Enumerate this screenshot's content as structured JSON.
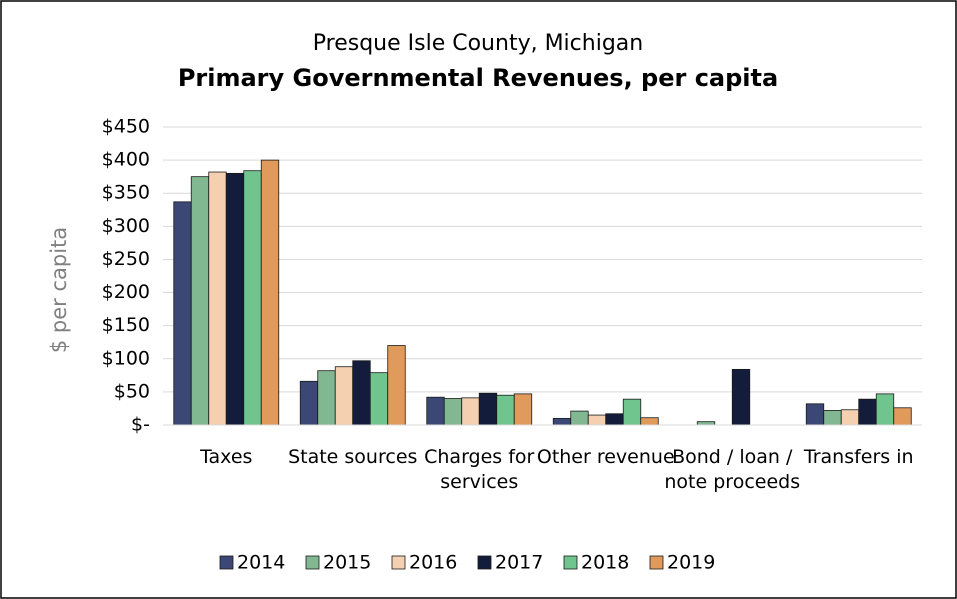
{
  "chart_data": {
    "type": "bar",
    "title": "Presque Isle County, Michigan",
    "subtitle": "Primary Governmental Revenues, per capita",
    "y_label": "$ per capita",
    "categories": [
      "Taxes",
      "State sources",
      "Charges for services",
      "Other revenue",
      "Bond / loan / note proceeds",
      "Transfers in"
    ],
    "series": [
      {
        "name": "2014",
        "color": "#3b4775",
        "values": [
          337,
          66,
          42,
          10,
          0,
          32
        ]
      },
      {
        "name": "2015",
        "color": "#82b891",
        "values": [
          375,
          82,
          40,
          21,
          5,
          22
        ]
      },
      {
        "name": "2016",
        "color": "#f4d0b0",
        "values": [
          382,
          88,
          41,
          15,
          0,
          23
        ]
      },
      {
        "name": "2017",
        "color": "#131d3b",
        "values": [
          380,
          97,
          48,
          17,
          84,
          39
        ]
      },
      {
        "name": "2018",
        "color": "#6fc58d",
        "values": [
          384,
          79,
          45,
          39,
          0,
          47
        ]
      },
      {
        "name": "2019",
        "color": "#e09a5c",
        "values": [
          400,
          120,
          47,
          11,
          0,
          26
        ]
      }
    ],
    "ylim": [
      0,
      450
    ],
    "yticks": [
      {
        "value": 0,
        "label": "$-"
      },
      {
        "value": 50,
        "label": "$50"
      },
      {
        "value": 100,
        "label": "$100"
      },
      {
        "value": 150,
        "label": "$150"
      },
      {
        "value": 200,
        "label": "$200"
      },
      {
        "value": 250,
        "label": "$250"
      },
      {
        "value": 300,
        "label": "$300"
      },
      {
        "value": 350,
        "label": "$350"
      },
      {
        "value": 400,
        "label": "$400"
      },
      {
        "value": 450,
        "label": "$450"
      }
    ],
    "grid": true,
    "legend": "bottom"
  }
}
